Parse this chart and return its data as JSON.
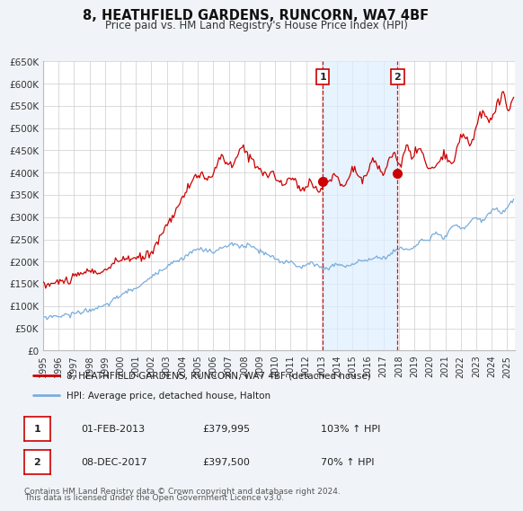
{
  "title": "8, HEATHFIELD GARDENS, RUNCORN, WA7 4BF",
  "subtitle": "Price paid vs. HM Land Registry's House Price Index (HPI)",
  "ylim": [
    0,
    650000
  ],
  "yticks": [
    0,
    50000,
    100000,
    150000,
    200000,
    250000,
    300000,
    350000,
    400000,
    450000,
    500000,
    550000,
    600000,
    650000
  ],
  "ytick_labels": [
    "£0",
    "£50K",
    "£100K",
    "£150K",
    "£200K",
    "£250K",
    "£300K",
    "£350K",
    "£400K",
    "£450K",
    "£500K",
    "£550K",
    "£600K",
    "£650K"
  ],
  "xlim_start": 1995.0,
  "xlim_end": 2025.5,
  "xticks": [
    1995,
    1996,
    1997,
    1998,
    1999,
    2000,
    2001,
    2002,
    2003,
    2004,
    2005,
    2006,
    2007,
    2008,
    2009,
    2010,
    2011,
    2012,
    2013,
    2014,
    2015,
    2016,
    2017,
    2018,
    2019,
    2020,
    2021,
    2022,
    2023,
    2024,
    2025
  ],
  "property_color": "#cc0000",
  "hpi_color": "#7aaddc",
  "sale1_x": 2013.083,
  "sale1_y": 379995,
  "sale2_x": 2017.917,
  "sale2_y": 397500,
  "legend_property": "8, HEATHFIELD GARDENS, RUNCORN, WA7 4BF (detached house)",
  "legend_hpi": "HPI: Average price, detached house, Halton",
  "table_row1": [
    "1",
    "01-FEB-2013",
    "£379,995",
    "103% ↑ HPI"
  ],
  "table_row2": [
    "2",
    "08-DEC-2017",
    "£397,500",
    "70% ↑ HPI"
  ],
  "footnote1": "Contains HM Land Registry data © Crown copyright and database right 2024.",
  "footnote2": "This data is licensed under the Open Government Licence v3.0.",
  "background_color": "#f0f4f8",
  "plot_bg_color": "#ffffff",
  "grid_color": "#cccccc",
  "span_color": "#ddeeff"
}
